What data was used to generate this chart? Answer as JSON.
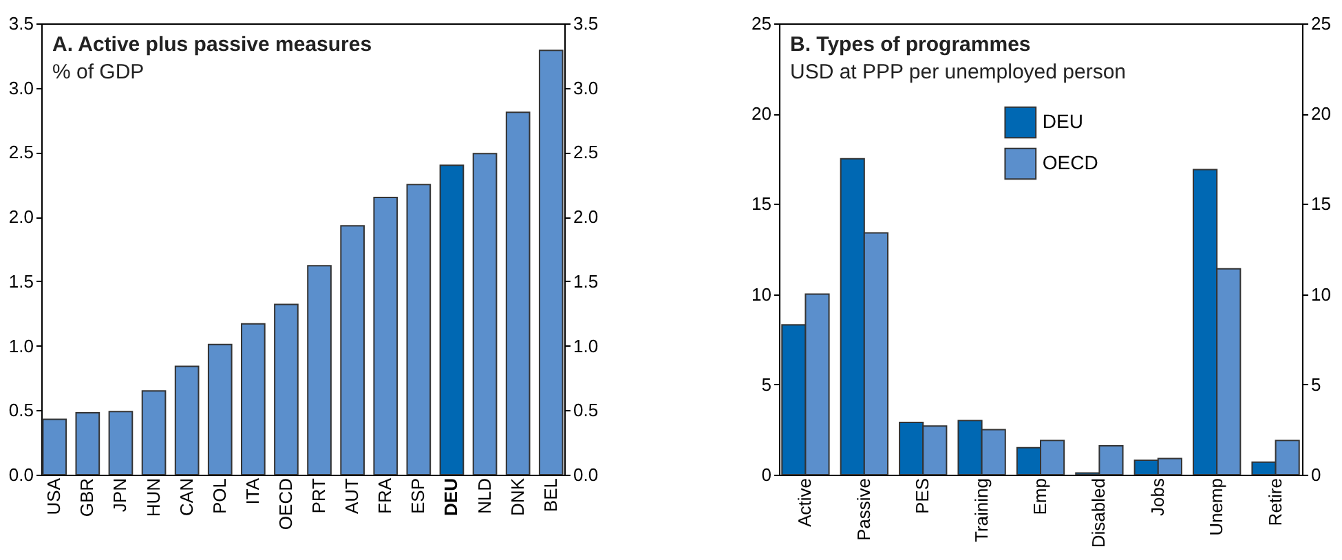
{
  "chart_data": [
    {
      "type": "bar",
      "title": "A. Active plus passive measures",
      "subtitle": "% of GDP",
      "categories": [
        "USA",
        "GBR",
        "JPN",
        "HUN",
        "CAN",
        "POL",
        "ITA",
        "OECD",
        "PRT",
        "AUT",
        "FRA",
        "ESP",
        "DEU",
        "NLD",
        "DNK",
        "BEL"
      ],
      "values": [
        0.43,
        0.48,
        0.49,
        0.65,
        0.84,
        1.01,
        1.17,
        1.32,
        1.62,
        1.93,
        2.15,
        2.25,
        2.4,
        2.49,
        2.81,
        3.29
      ],
      "colors": [
        "#5b8fcc",
        "#5b8fcc",
        "#5b8fcc",
        "#5b8fcc",
        "#5b8fcc",
        "#5b8fcc",
        "#5b8fcc",
        "#5b8fcc",
        "#5b8fcc",
        "#5b8fcc",
        "#5b8fcc",
        "#5b8fcc",
        "#0068b3",
        "#5b8fcc",
        "#5b8fcc",
        "#5b8fcc"
      ],
      "ylim": [
        0,
        3.5
      ],
      "y2lim": [
        0,
        3.5
      ],
      "yticks": [
        {
          "value": 0,
          "label": "0.0"
        },
        0.5,
        {
          "value": 1,
          "label": "1.0"
        },
        1.5,
        {
          "value": 2,
          "label": "2.0"
        },
        2.5,
        {
          "value": 3,
          "label": "3.0"
        },
        3.5
      ],
      "y2ticks": [
        {
          "value": 0,
          "label": "0.0"
        },
        0.5,
        {
          "value": 1,
          "label": "1.0"
        },
        1.5,
        {
          "value": 2,
          "label": "2.0"
        },
        2.5,
        {
          "value": 3,
          "label": "3.0"
        },
        3.5
      ],
      "grid": false,
      "legend": false
    },
    {
      "type": "bar",
      "title": "B. Types of programmes",
      "subtitle": "USD at PPP per unemployed person",
      "categories": [
        "Active",
        "Passive",
        "PES",
        "Training",
        "Emp",
        "Disabled",
        "Jobs",
        "Unemp",
        "Retire"
      ],
      "series": [
        {
          "name": "DEU",
          "color": "#0068b3",
          "values": [
            8.3,
            17.5,
            2.9,
            3.0,
            1.5,
            0.1,
            0.8,
            16.9,
            0.7
          ]
        },
        {
          "name": "OECD",
          "color": "#5b8fcc",
          "values": [
            10.0,
            13.4,
            2.7,
            2.5,
            1.9,
            1.6,
            0.9,
            11.4,
            1.9
          ]
        }
      ],
      "ylim": [
        0,
        25
      ],
      "y2lim": [
        0,
        25
      ],
      "yticks": [
        0,
        5,
        10,
        15,
        20,
        25
      ],
      "y2ticks": [
        0,
        5,
        10,
        15,
        20,
        25
      ],
      "grid": false,
      "legend": "top"
    }
  ]
}
